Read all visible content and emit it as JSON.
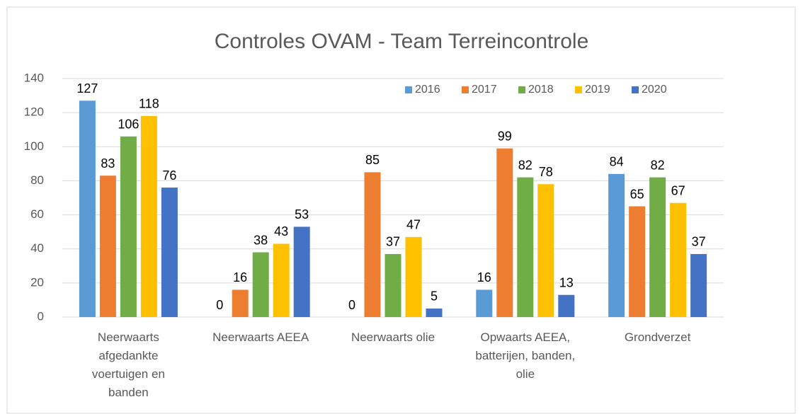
{
  "chart_data": {
    "type": "bar",
    "title": "Controles OVAM - Team Terreincontrole",
    "categories": [
      "Neerwaarts afgedankte voertuigen en banden",
      "Neerwaarts AEEA",
      "Neerwaarts olie",
      "Opwaarts AEEA, batterijen, banden, olie",
      "Grondverzet"
    ],
    "series": [
      {
        "name": "2016",
        "color": "#5b9bd5",
        "values": [
          127,
          0,
          0,
          16,
          84
        ]
      },
      {
        "name": "2017",
        "color": "#ed7d31",
        "values": [
          83,
          16,
          85,
          99,
          65
        ]
      },
      {
        "name": "2018",
        "color": "#70ad47",
        "values": [
          106,
          38,
          37,
          82,
          82
        ]
      },
      {
        "name": "2019",
        "color": "#ffc000",
        "values": [
          118,
          43,
          47,
          78,
          67
        ]
      },
      {
        "name": "2020",
        "color": "#4472c4",
        "values": [
          76,
          53,
          5,
          13,
          37
        ]
      }
    ],
    "ylim": [
      0,
      140
    ],
    "yticks": [
      0,
      20,
      40,
      60,
      80,
      100,
      120,
      140
    ],
    "grid": true,
    "legend": "top-right"
  }
}
